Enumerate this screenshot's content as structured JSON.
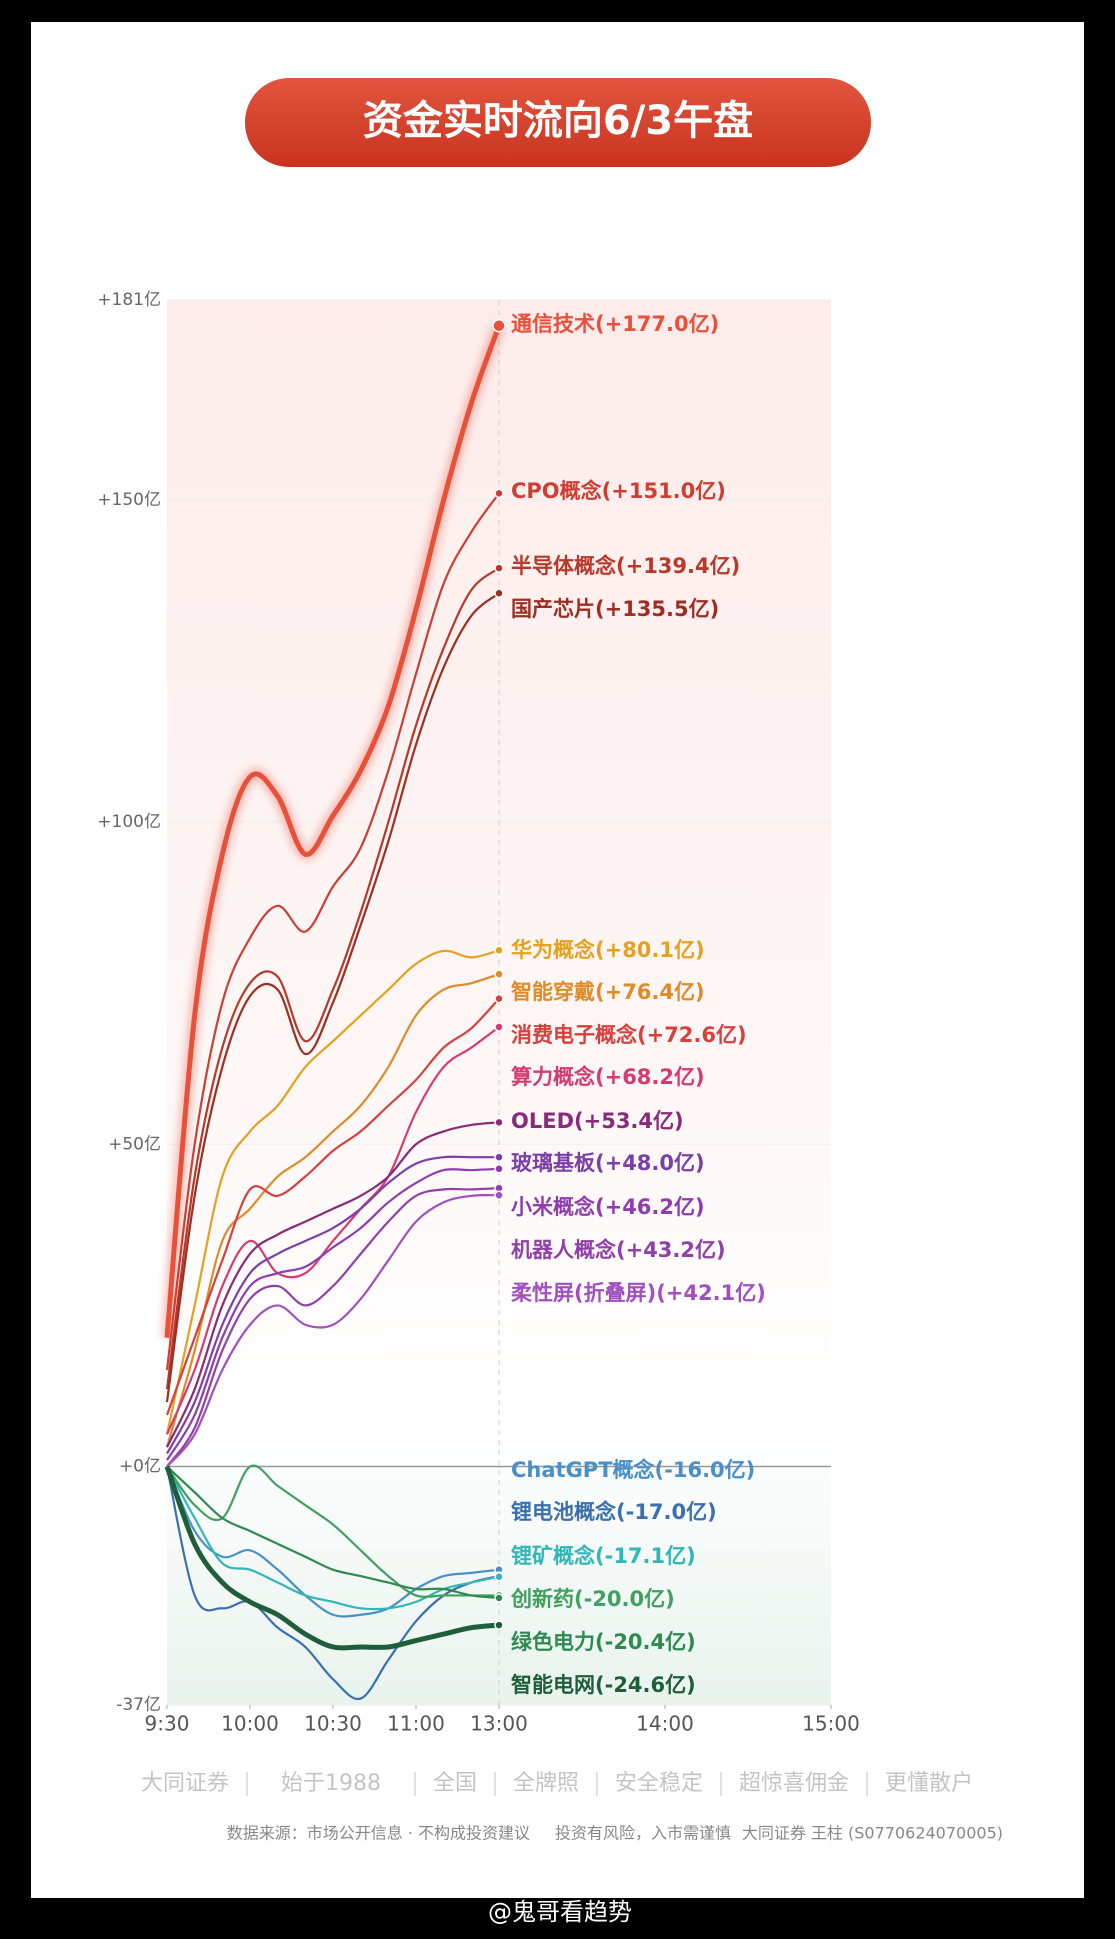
{
  "chart_data": {
    "type": "line",
    "title": "资金实时流向6/3午盘",
    "x": [
      0,
      10,
      20,
      30,
      40,
      50,
      60,
      70,
      80,
      90,
      100,
      110,
      120
    ],
    "xlim": [
      0,
      240
    ],
    "xticks": [
      {
        "value": 0,
        "label": "9:30"
      },
      {
        "value": 30,
        "label": "10:00"
      },
      {
        "value": 60,
        "label": "10:30"
      },
      {
        "value": 90,
        "label": "11:00"
      },
      {
        "value": 120,
        "label": "13:00"
      },
      {
        "value": 180,
        "label": "14:00"
      },
      {
        "value": 240,
        "label": "15:00"
      }
    ],
    "ylim": [
      -37,
      181
    ],
    "yticks": [
      {
        "value": -37,
        "label": "-37亿"
      },
      {
        "value": 0,
        "label": "+0亿"
      },
      {
        "value": 50,
        "label": "+50亿"
      },
      {
        "value": 100,
        "label": "+100亿"
      },
      {
        "value": 150,
        "label": "+150亿"
      },
      {
        "value": 181,
        "label": "+181亿"
      }
    ],
    "grid": true,
    "series": [
      {
        "name": "通信技术",
        "color": "#e8503a",
        "values": [
          20,
          70,
          95,
          107,
          104,
          95,
          101,
          108,
          118,
          133,
          150,
          165,
          177.0
        ],
        "value_labels": [
          null,
          null,
          null,
          null,
          null,
          null,
          null,
          null,
          null,
          null,
          null,
          null,
          "(+177.0亿)"
        ]
      },
      {
        "name": "CPO概念",
        "color": "#cf3d33",
        "values": [
          15,
          50,
          72,
          82,
          87,
          83,
          90,
          96,
          108,
          123,
          137,
          145,
          151.0
        ],
        "value_labels": [
          null,
          null,
          null,
          null,
          null,
          null,
          null,
          null,
          null,
          null,
          null,
          null,
          "(+151.0亿)"
        ]
      },
      {
        "name": "半导体概念",
        "color": "#b8382a",
        "values": [
          12,
          45,
          65,
          75,
          76,
          66,
          74,
          86,
          100,
          115,
          127,
          136,
          139.4
        ],
        "value_labels": [
          null,
          null,
          null,
          null,
          null,
          null,
          null,
          null,
          null,
          null,
          null,
          null,
          "(+139.4亿)"
        ]
      },
      {
        "name": "国产芯片",
        "color": "#9e2e22",
        "values": [
          10,
          42,
          62,
          73,
          74,
          64,
          72,
          84,
          97,
          112,
          124,
          132,
          135.5
        ],
        "value_labels": [
          null,
          null,
          null,
          null,
          null,
          null,
          null,
          null,
          null,
          null,
          null,
          null,
          "(+135.5亿)"
        ]
      },
      {
        "name": "华为概念",
        "color": "#e6a020",
        "values": [
          5,
          25,
          45,
          52,
          56,
          62,
          66,
          70,
          74,
          78,
          80,
          79,
          80.1
        ],
        "value_labels": [
          null,
          null,
          null,
          null,
          null,
          null,
          null,
          null,
          null,
          null,
          null,
          null,
          "(+80.1亿)"
        ]
      },
      {
        "name": "智能穿戴",
        "color": "#e08a28",
        "values": [
          3,
          18,
          35,
          40,
          45,
          48,
          52,
          56,
          62,
          70,
          74,
          75,
          76.4
        ],
        "value_labels": [
          null,
          null,
          null,
          null,
          null,
          null,
          null,
          null,
          null,
          null,
          null,
          null,
          "(+76.4亿)"
        ]
      },
      {
        "name": "消费电子概念",
        "color": "#d8403e",
        "values": [
          8,
          20,
          32,
          43,
          42,
          45,
          49,
          52,
          56,
          60,
          65,
          68,
          72.6
        ],
        "value_labels": [
          null,
          null,
          null,
          null,
          null,
          null,
          null,
          null,
          null,
          null,
          null,
          null,
          "(+72.6亿)"
        ]
      },
      {
        "name": "算力概念",
        "color": "#d83a70",
        "values": [
          5,
          15,
          28,
          35,
          30,
          30,
          35,
          40,
          45,
          55,
          62,
          65,
          68.2
        ],
        "value_labels": [
          null,
          null,
          null,
          null,
          null,
          null,
          null,
          null,
          null,
          null,
          null,
          null,
          "(+68.2亿)"
        ]
      },
      {
        "name": "OLED",
        "color": "#8a2a7a",
        "values": [
          3,
          12,
          25,
          33,
          36,
          38,
          40,
          42,
          45,
          50,
          52,
          53,
          53.4
        ],
        "value_labels": [
          null,
          null,
          null,
          null,
          null,
          null,
          null,
          null,
          null,
          null,
          null,
          null,
          "(+53.4亿)"
        ]
      },
      {
        "name": "玻璃基板",
        "color": "#7b3fa8",
        "values": [
          2,
          10,
          22,
          30,
          33,
          35,
          37,
          40,
          44,
          47,
          48,
          48,
          48.0
        ],
        "value_labels": [
          null,
          null,
          null,
          null,
          null,
          null,
          null,
          null,
          null,
          null,
          null,
          null,
          "(+48.0亿)"
        ]
      },
      {
        "name": "小米概念",
        "color": "#8e3cb0",
        "values": [
          1,
          8,
          20,
          28,
          30,
          31,
          34,
          37,
          41,
          44,
          46,
          46,
          46.2
        ],
        "value_labels": [
          null,
          null,
          null,
          null,
          null,
          null,
          null,
          null,
          null,
          null,
          null,
          null,
          "(+46.2亿)"
        ]
      },
      {
        "name": "机器人概念",
        "color": "#9040a8",
        "values": [
          0,
          6,
          18,
          26,
          28,
          25,
          28,
          33,
          38,
          42,
          43,
          43,
          43.2
        ],
        "value_labels": [
          null,
          null,
          null,
          null,
          null,
          null,
          null,
          null,
          null,
          null,
          null,
          null,
          "(+43.2亿)"
        ]
      },
      {
        "name": "柔性屏(折叠屏)",
        "color": "#a050c0",
        "values": [
          0,
          5,
          15,
          22,
          25,
          22,
          22,
          26,
          32,
          38,
          41,
          42,
          42.1
        ],
        "value_labels": [
          null,
          null,
          null,
          null,
          null,
          null,
          null,
          null,
          null,
          null,
          null,
          null,
          "(+42.1亿)"
        ]
      },
      {
        "name": "ChatGPT概念",
        "color": "#4a90c8",
        "values": [
          0,
          -10,
          -14,
          -13,
          -16,
          -20,
          -23,
          -23,
          -22,
          -19,
          -17,
          -16.5,
          -16.0
        ],
        "value_labels": [
          null,
          null,
          null,
          null,
          null,
          null,
          null,
          null,
          null,
          null,
          null,
          null,
          "(-16.0亿)"
        ]
      },
      {
        "name": "锂电池概念",
        "color": "#3a70b0",
        "values": [
          0,
          -20,
          -22,
          -21,
          -25,
          -28,
          -33,
          -36,
          -30,
          -24,
          -20,
          -18,
          -17.0
        ],
        "value_labels": [
          null,
          null,
          null,
          null,
          null,
          null,
          null,
          null,
          null,
          null,
          null,
          null,
          "(-17.0亿)"
        ]
      },
      {
        "name": "锂矿概念",
        "color": "#30b8b8",
        "values": [
          0,
          -8,
          -15,
          -16,
          -18,
          -20,
          -21,
          -22,
          -22,
          -21,
          -19,
          -18,
          -17.1
        ],
        "value_labels": [
          null,
          null,
          null,
          null,
          null,
          null,
          null,
          null,
          null,
          null,
          null,
          null,
          "(-17.1亿)"
        ]
      },
      {
        "name": "创新药",
        "color": "#3fa060",
        "values": [
          0,
          -6,
          -8,
          0,
          -3,
          -6,
          -9,
          -13,
          -17,
          -20,
          -20,
          -20,
          -20.0
        ],
        "value_labels": [
          null,
          null,
          null,
          null,
          null,
          null,
          null,
          null,
          null,
          null,
          null,
          null,
          "(-20.0亿)"
        ]
      },
      {
        "name": "绿色电力",
        "color": "#2e8a50",
        "values": [
          0,
          -4,
          -8,
          -10,
          -12,
          -14,
          -16,
          -17,
          -18,
          -19,
          -19,
          -20,
          -20.4
        ],
        "value_labels": [
          null,
          null,
          null,
          null,
          null,
          null,
          null,
          null,
          null,
          null,
          null,
          null,
          "(-20.4亿)"
        ]
      },
      {
        "name": "智能电网",
        "color": "#1f5e3a",
        "values": [
          0,
          -12,
          -18,
          -21,
          -23,
          -26,
          -28,
          -28,
          -28,
          -27,
          -26,
          -25,
          -24.6
        ],
        "value_labels": [
          null,
          null,
          null,
          null,
          null,
          null,
          null,
          null,
          null,
          null,
          null,
          null,
          "(-24.6亿)"
        ]
      }
    ]
  },
  "footer": {
    "slogans": [
      "大同证券",
      "始于1988",
      "全国",
      "全牌照",
      "安全稳定",
      "超惊喜佣金",
      "更懂散户"
    ],
    "source": "数据来源：市场公开信息 · 不构成投资建议",
    "risk": "投资有风险，入市需谨慎",
    "author": "大同证券 王柱 (S0770624070005)"
  },
  "watermark": "@鬼哥看趋势"
}
